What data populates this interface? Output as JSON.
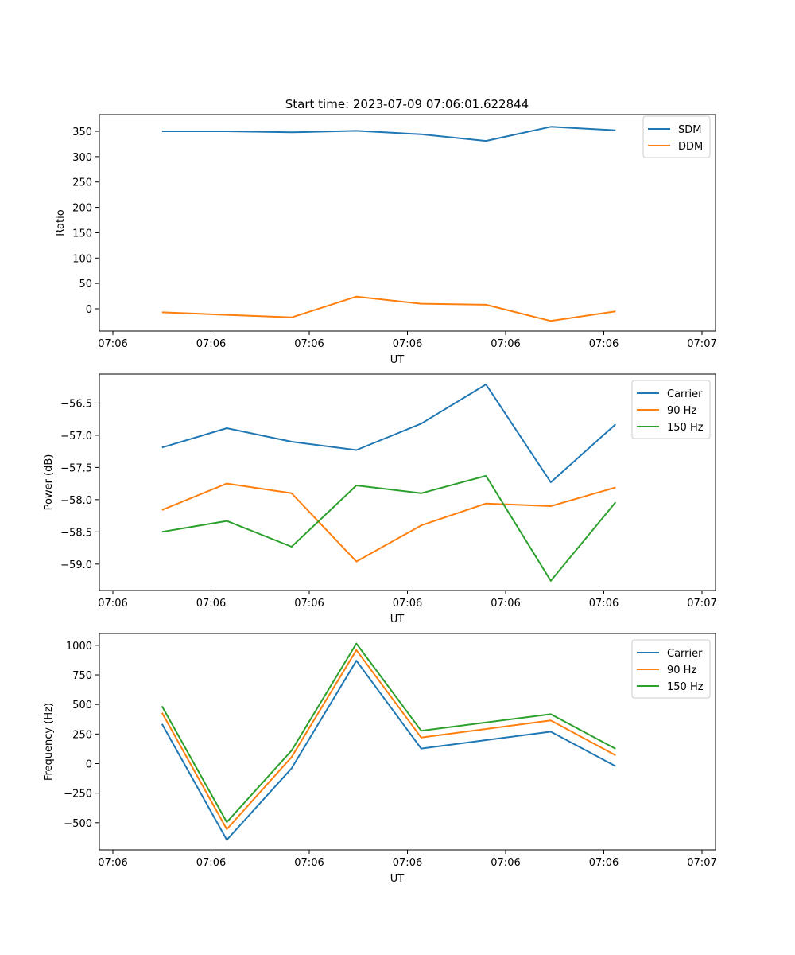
{
  "figure_title": "Start time: 2023-07-09 07:06:01.622844",
  "colors": {
    "blue": "#1f77b4",
    "orange": "#ff7f0e",
    "green": "#2ca02c"
  },
  "chart_data": [
    {
      "type": "line",
      "title": "Start time: 2023-07-09 07:06:01.622844",
      "xlabel": "UT",
      "ylabel": "Ratio",
      "x_tick_labels": [
        "07:06",
        "07:06",
        "07:06",
        "07:06",
        "07:06",
        "07:06",
        "07:07"
      ],
      "xlim": [
        0,
        6
      ],
      "x": [
        0.5,
        1.16,
        1.82,
        2.48,
        3.14,
        3.8,
        4.46,
        5.12
      ],
      "ylim": [
        -44,
        383
      ],
      "yticks": [
        0,
        50,
        100,
        150,
        200,
        250,
        300,
        350
      ],
      "legend": "top-right",
      "series": [
        {
          "name": "SDM",
          "color": "#1f77b4",
          "values": [
            350,
            350,
            348,
            351,
            344,
            331,
            359,
            352
          ]
        },
        {
          "name": "DDM",
          "color": "#ff7f0e",
          "values": [
            -7,
            -12,
            -17,
            24,
            10,
            8,
            -24,
            -5
          ]
        }
      ]
    },
    {
      "type": "line",
      "title": "",
      "xlabel": "UT",
      "ylabel": "Power (dB)",
      "x_tick_labels": [
        "07:06",
        "07:06",
        "07:06",
        "07:06",
        "07:06",
        "07:06",
        "07:07"
      ],
      "xlim": [
        0,
        6
      ],
      "x": [
        0.5,
        1.16,
        1.82,
        2.48,
        3.14,
        3.8,
        4.46,
        5.12
      ],
      "ylim": [
        -59.41,
        -56.05
      ],
      "yticks": [
        -59.0,
        -58.5,
        -58.0,
        -57.5,
        -57.0,
        -56.5
      ],
      "ytick_labels": [
        "−59.0",
        "−58.5",
        "−58.0",
        "−57.5",
        "−57.0",
        "−56.5"
      ],
      "legend": "top-right",
      "series": [
        {
          "name": "Carrier",
          "color": "#1f77b4",
          "values": [
            -57.19,
            -56.89,
            -57.1,
            -57.23,
            -56.82,
            -56.21,
            -57.73,
            -56.83
          ]
        },
        {
          "name": "90 Hz",
          "color": "#ff7f0e",
          "values": [
            -58.16,
            -57.75,
            -57.9,
            -58.96,
            -58.4,
            -58.06,
            -58.1,
            -57.81
          ]
        },
        {
          "name": "150 Hz",
          "color": "#2ca02c",
          "values": [
            -58.5,
            -58.33,
            -58.73,
            -57.78,
            -57.9,
            -57.63,
            -59.26,
            -58.04
          ]
        }
      ]
    },
    {
      "type": "line",
      "title": "",
      "xlabel": "UT",
      "ylabel": "Frequency (Hz)",
      "x_tick_labels": [
        "07:06",
        "07:06",
        "07:06",
        "07:06",
        "07:06",
        "07:06",
        "07:07"
      ],
      "xlim": [
        0,
        6
      ],
      "x": [
        0.5,
        1.16,
        1.82,
        2.48,
        3.14,
        3.8,
        4.46,
        5.12
      ],
      "ylim": [
        -730,
        1100
      ],
      "yticks": [
        -500,
        -250,
        0,
        250,
        500,
        750,
        1000
      ],
      "ytick_labels": [
        "−500",
        "−250",
        "0",
        "250",
        "500",
        "750",
        "1000"
      ],
      "legend": "top-right",
      "series": [
        {
          "name": "Carrier",
          "color": "#1f77b4",
          "values": [
            335,
            -645,
            -40,
            870,
            127,
            null,
            270,
            -22
          ]
        },
        {
          "name": "90 Hz",
          "color": "#ff7f0e",
          "values": [
            430,
            -555,
            55,
            960,
            220,
            null,
            365,
            70
          ]
        },
        {
          "name": "150 Hz",
          "color": "#2ca02c",
          "values": [
            485,
            -495,
            110,
            1015,
            278,
            null,
            418,
            125
          ]
        }
      ]
    }
  ]
}
